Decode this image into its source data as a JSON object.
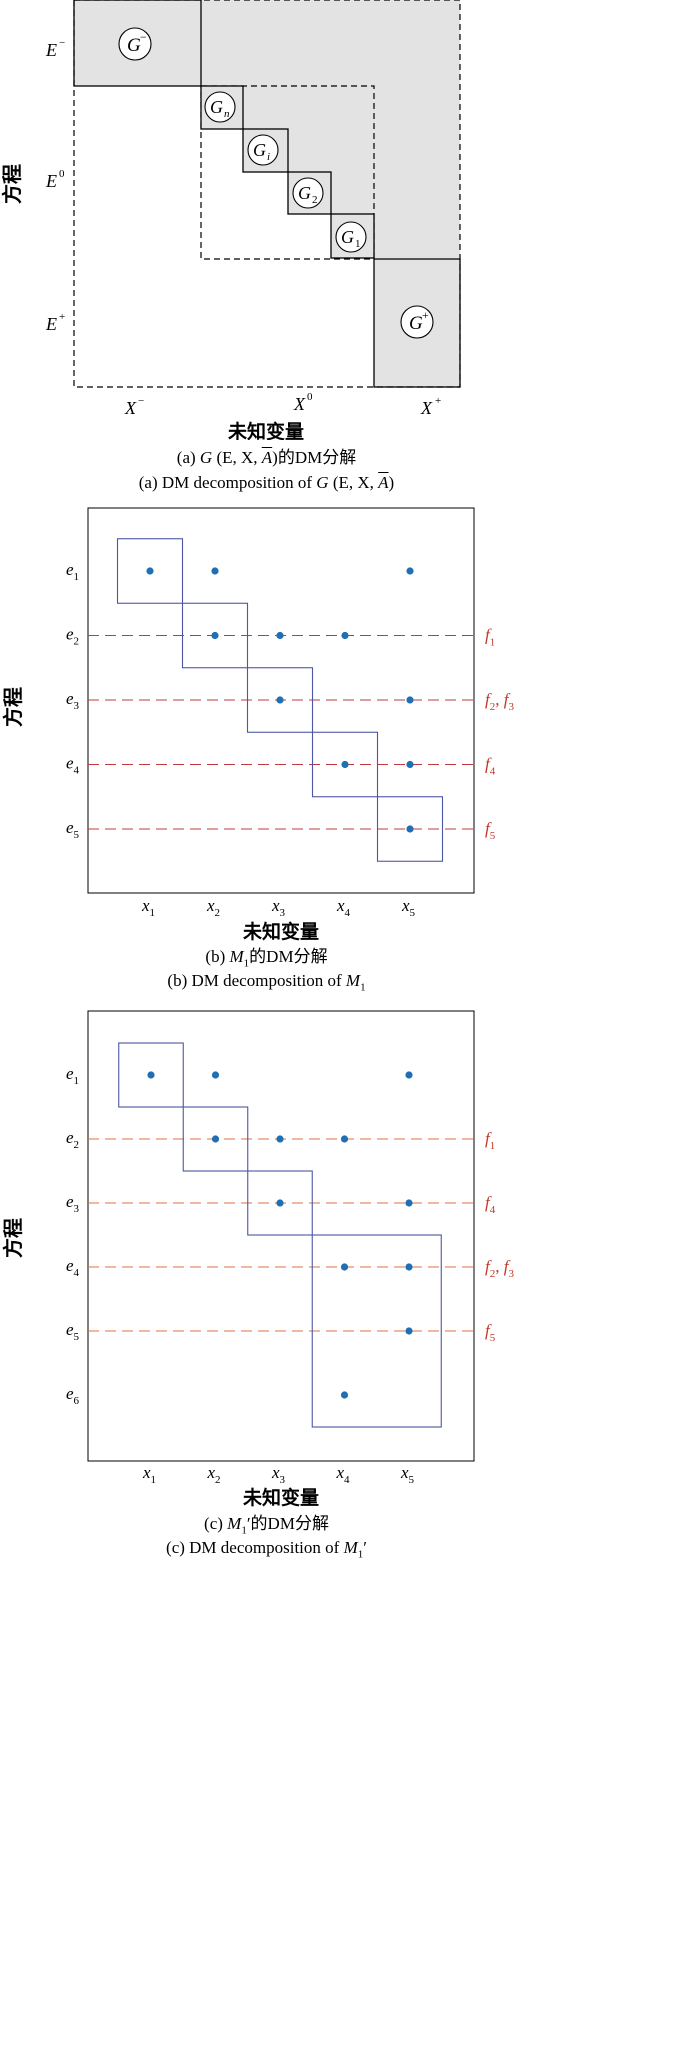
{
  "figure_a": {
    "y_axis_label": "方程",
    "x_axis_label": "未知变量",
    "row_labels": [
      {
        "base": "E",
        "sup": "−"
      },
      {
        "base": "E",
        "sup": "0"
      },
      {
        "base": "E",
        "sup": "+"
      }
    ],
    "col_labels": [
      {
        "base": "X",
        "sup": "−"
      },
      {
        "base": "X",
        "sup": "0"
      },
      {
        "base": "X",
        "sup": "+"
      }
    ],
    "blocks": [
      {
        "name": "G-minus",
        "base": "G",
        "sup": "−",
        "sub": ""
      },
      {
        "name": "G-n",
        "base": "G",
        "sup": "",
        "sub": "n"
      },
      {
        "name": "G-i",
        "base": "G",
        "sup": "",
        "sub": "i"
      },
      {
        "name": "G-2",
        "base": "G",
        "sup": "",
        "sub": "2"
      },
      {
        "name": "G-1",
        "base": "G",
        "sup": "",
        "sub": "1"
      },
      {
        "name": "G-plus",
        "base": "G",
        "sup": "+",
        "sub": ""
      }
    ],
    "caption_cn": {
      "prefix": "(a) ",
      "italic": "G",
      "mid": " (E, X, ",
      "abar": "A",
      "suffix": ")的DM分解"
    },
    "caption_en": {
      "prefix": "(a) DM decomposition of ",
      "italic": "G",
      "mid": " (E, X, ",
      "abar": "A",
      "suffix": ")"
    }
  },
  "figure_b": {
    "y_axis_label": "方程",
    "x_axis_label": "未知变量",
    "rows": [
      "e1",
      "e2",
      "e3",
      "e4",
      "e5"
    ],
    "row_labels": [
      {
        "base": "e",
        "sub": "1"
      },
      {
        "base": "e",
        "sub": "2"
      },
      {
        "base": "e",
        "sub": "3"
      },
      {
        "base": "e",
        "sub": "4"
      },
      {
        "base": "e",
        "sub": "5"
      }
    ],
    "col_labels": [
      {
        "base": "x",
        "sub": "1"
      },
      {
        "base": "x",
        "sub": "2"
      },
      {
        "base": "x",
        "sub": "3"
      },
      {
        "base": "x",
        "sub": "4"
      },
      {
        "base": "x",
        "sub": "5"
      }
    ],
    "points": [
      {
        "row": 1,
        "col": 1
      },
      {
        "row": 1,
        "col": 2
      },
      {
        "row": 1,
        "col": 5
      },
      {
        "row": 2,
        "col": 2
      },
      {
        "row": 2,
        "col": 3
      },
      {
        "row": 2,
        "col": 4
      },
      {
        "row": 3,
        "col": 3
      },
      {
        "row": 3,
        "col": 5
      },
      {
        "row": 4,
        "col": 4
      },
      {
        "row": 4,
        "col": 5
      },
      {
        "row": 5,
        "col": 5
      }
    ],
    "blocks": [
      {
        "rows": [
          1,
          1
        ],
        "cols": [
          1,
          1
        ]
      },
      {
        "rows": [
          2,
          2
        ],
        "cols": [
          2,
          2
        ]
      },
      {
        "rows": [
          3,
          3
        ],
        "cols": [
          3,
          3
        ]
      },
      {
        "rows": [
          4,
          4
        ],
        "cols": [
          4,
          4
        ]
      },
      {
        "rows": [
          5,
          5
        ],
        "cols": [
          5,
          5
        ]
      }
    ],
    "dashed_lines": [
      {
        "row": 2,
        "label": [
          {
            "base": "f",
            "sub": "1"
          }
        ]
      },
      {
        "row": 3,
        "label": [
          {
            "base": "f",
            "sub": "2"
          },
          {
            "base": "f",
            "sub": "3"
          }
        ]
      },
      {
        "row": 4,
        "label": [
          {
            "base": "f",
            "sub": "4"
          }
        ]
      },
      {
        "row": 5,
        "label": [
          {
            "base": "f",
            "sub": "5"
          }
        ]
      }
    ],
    "caption_cn": {
      "prefix": "(b) ",
      "italic": "M",
      "sub": "1",
      "suffix": "的DM分解"
    },
    "caption_en": {
      "prefix": "(b) DM decomposition of ",
      "italic": "M",
      "sub": "1",
      "suffix": ""
    }
  },
  "figure_c": {
    "y_axis_label": "方程",
    "x_axis_label": "未知变量",
    "row_labels": [
      {
        "base": "e",
        "sub": "1"
      },
      {
        "base": "e",
        "sub": "2"
      },
      {
        "base": "e",
        "sub": "3"
      },
      {
        "base": "e",
        "sub": "4"
      },
      {
        "base": "e",
        "sub": "5"
      },
      {
        "base": "e",
        "sub": "6"
      }
    ],
    "col_labels": [
      {
        "base": "x",
        "sub": "1"
      },
      {
        "base": "x",
        "sub": "2"
      },
      {
        "base": "x",
        "sub": "3"
      },
      {
        "base": "x",
        "sub": "4"
      },
      {
        "base": "x",
        "sub": "5"
      }
    ],
    "points": [
      {
        "row": 1,
        "col": 1
      },
      {
        "row": 1,
        "col": 2
      },
      {
        "row": 1,
        "col": 5
      },
      {
        "row": 2,
        "col": 2
      },
      {
        "row": 2,
        "col": 3
      },
      {
        "row": 2,
        "col": 4
      },
      {
        "row": 3,
        "col": 3
      },
      {
        "row": 3,
        "col": 5
      },
      {
        "row": 4,
        "col": 4
      },
      {
        "row": 4,
        "col": 5
      },
      {
        "row": 5,
        "col": 5
      },
      {
        "row": 6,
        "col": 4
      }
    ],
    "blocks": [
      {
        "rows": [
          1,
          1
        ],
        "cols": [
          1,
          1
        ]
      },
      {
        "rows": [
          2,
          2
        ],
        "cols": [
          2,
          2
        ]
      },
      {
        "rows": [
          3,
          3
        ],
        "cols": [
          3,
          3
        ]
      },
      {
        "rows": [
          4,
          6
        ],
        "cols": [
          4,
          5
        ]
      }
    ],
    "dashed_lines": [
      {
        "row": 2,
        "label": [
          {
            "base": "f",
            "sub": "1"
          }
        ]
      },
      {
        "row": 3,
        "label": [
          {
            "base": "f",
            "sub": "4"
          }
        ]
      },
      {
        "row": 4,
        "label": [
          {
            "base": "f",
            "sub": "2"
          },
          {
            "base": "f",
            "sub": "3"
          }
        ]
      },
      {
        "row": 5,
        "label": [
          {
            "base": "f",
            "sub": "5"
          }
        ]
      }
    ],
    "caption_cn": {
      "prefix": "(c) ",
      "italic": "M",
      "sub": "1",
      "prime": "′",
      "suffix": "的DM分解"
    },
    "caption_en": {
      "prefix": "(c) DM decomposition of ",
      "italic": "M",
      "sub": "1",
      "prime": "′",
      "suffix": ""
    }
  },
  "colors": {
    "block_fill": "#e3e3e3",
    "frame": "#000000",
    "point": "#1f6fb5",
    "block_outline": "#4b57a6",
    "dash_b": "#c0393f",
    "dash_c": "#e0703c",
    "f_label": "#c0392b"
  }
}
